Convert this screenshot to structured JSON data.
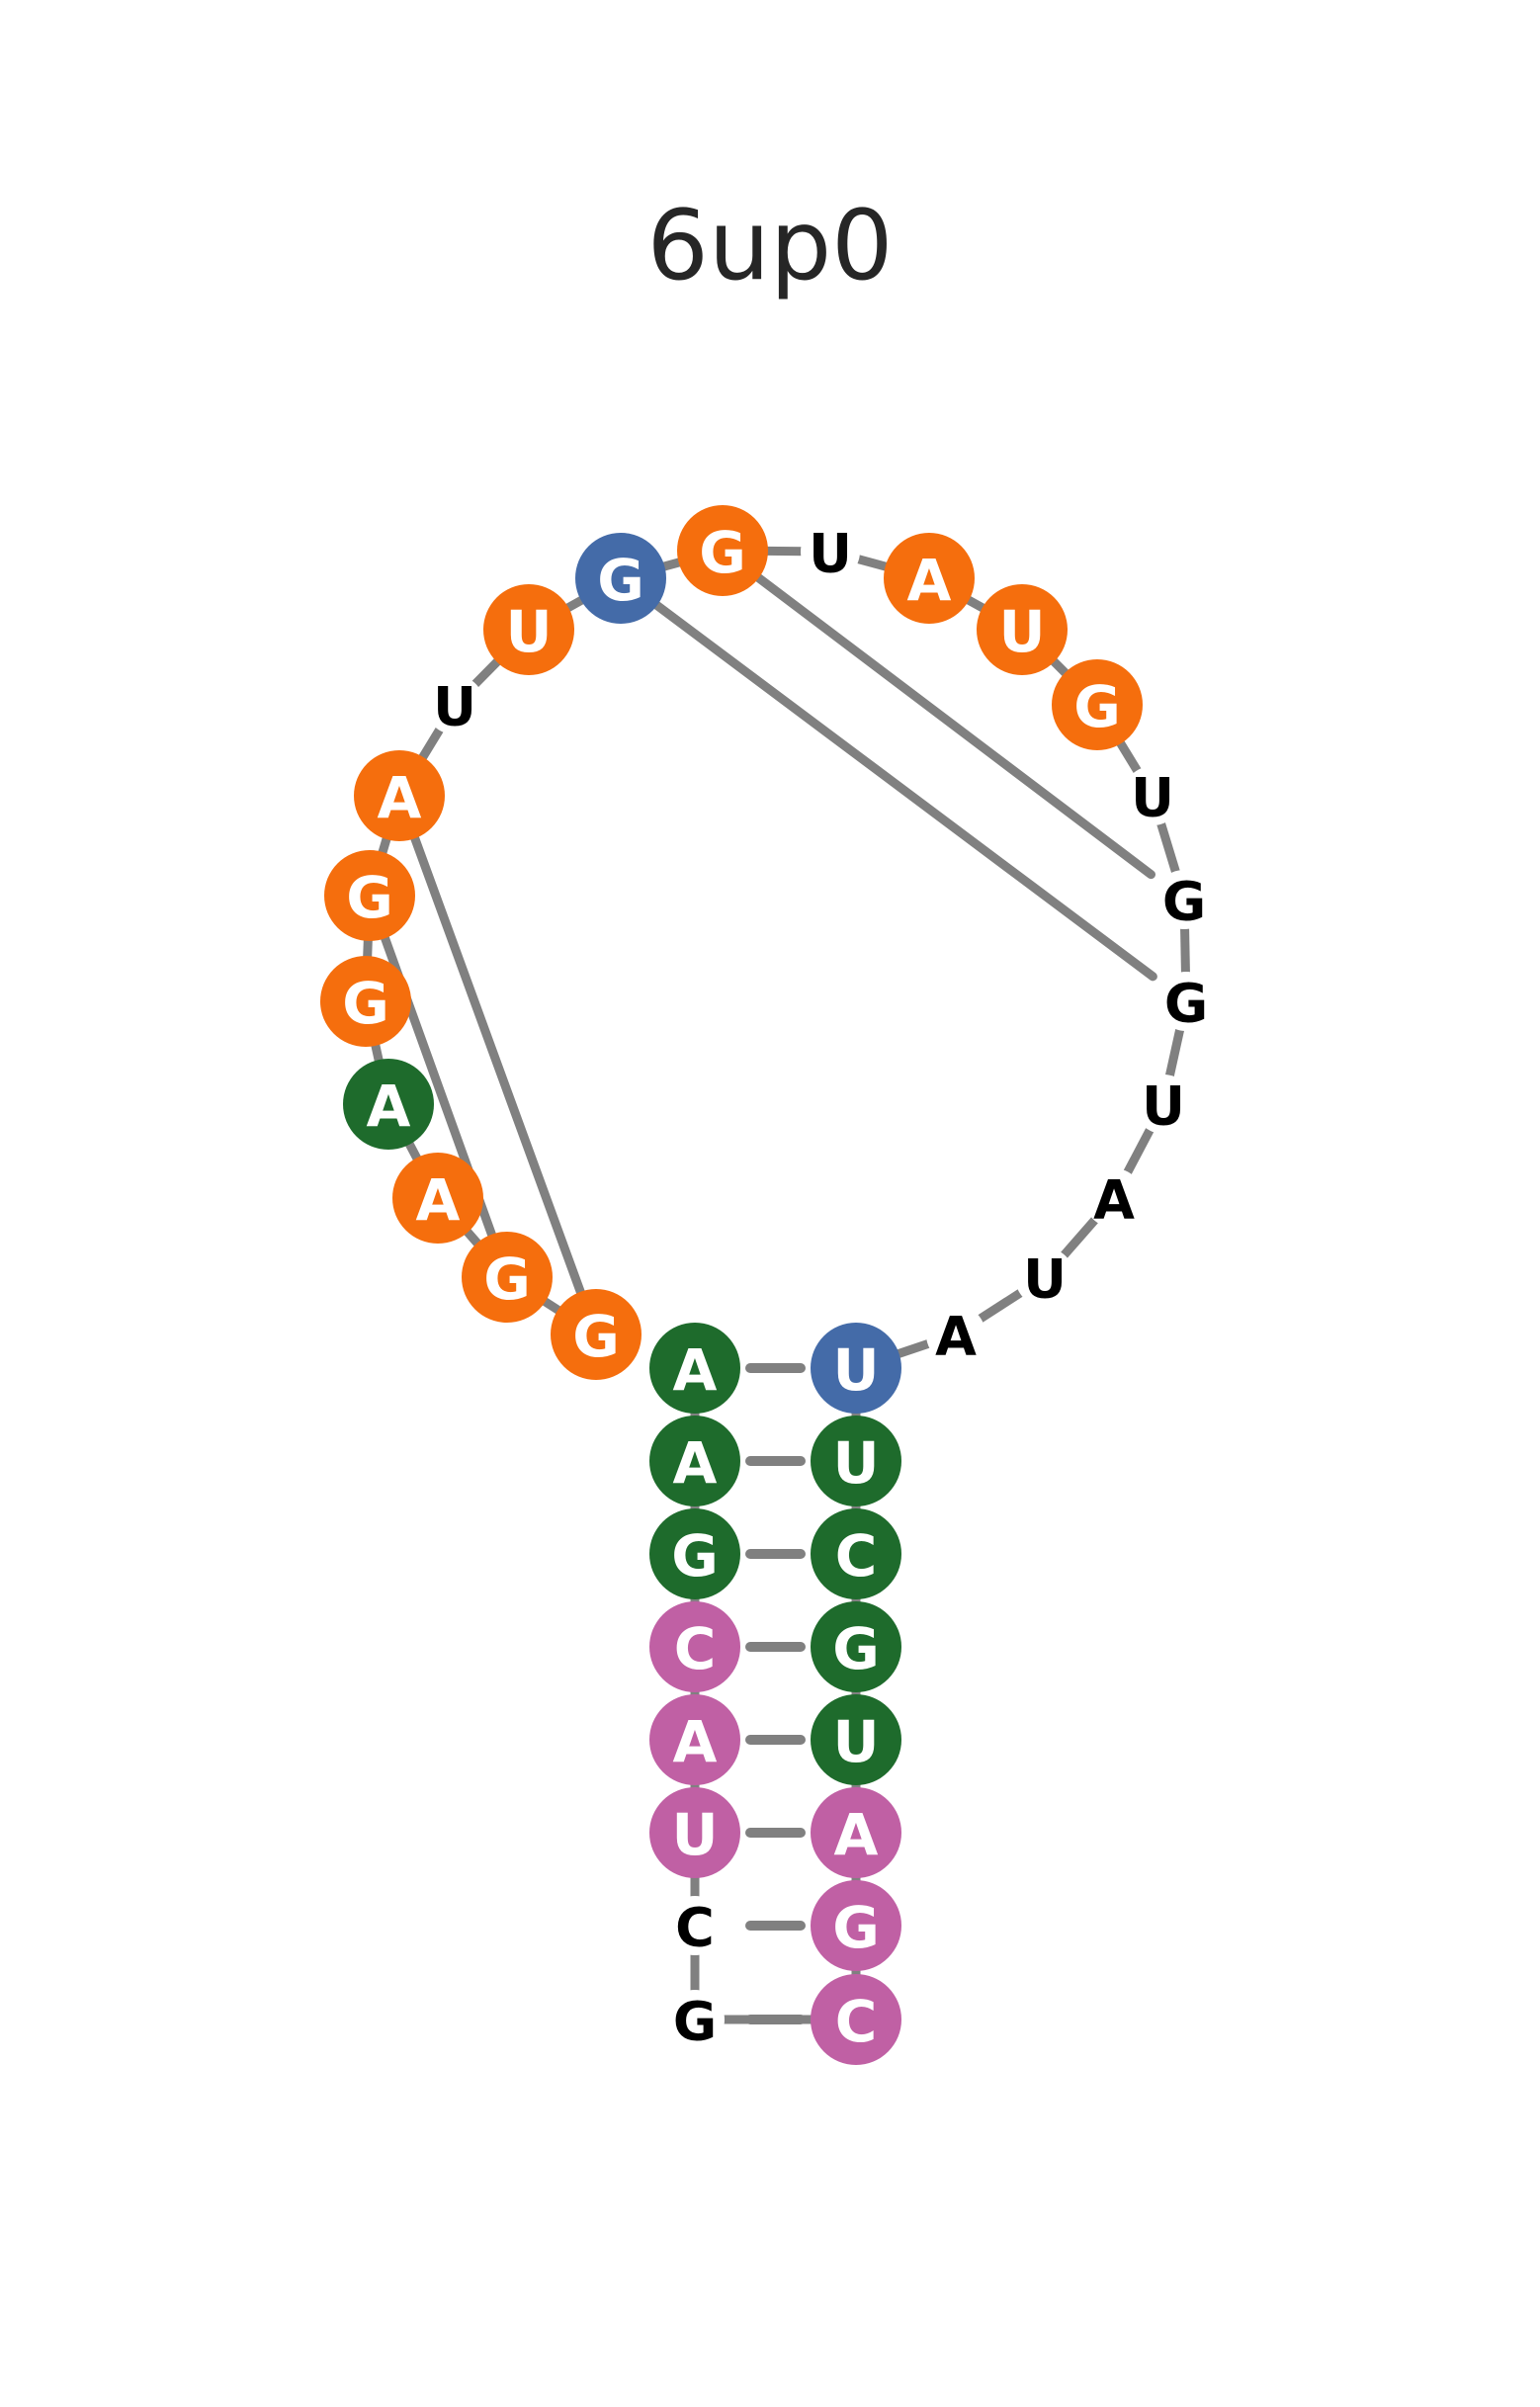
{
  "title": "6up0",
  "colors": {
    "orange": "#f56e0d",
    "blue": "#446ba8",
    "green": "#1e6b2c",
    "pink": "#c060a4",
    "backbone": "#808080",
    "label_on_circle": "#ffffff",
    "label_plain": "#000000"
  },
  "nucleotides": [
    {
      "base": "A",
      "color": "green"
    },
    {
      "base": "A",
      "color": "green"
    },
    {
      "base": "G",
      "color": "green"
    },
    {
      "base": "C",
      "color": "pink"
    },
    {
      "base": "A",
      "color": "pink"
    },
    {
      "base": "U",
      "color": "pink"
    },
    {
      "base": "C",
      "color": "none"
    },
    {
      "base": "G",
      "color": "none"
    },
    {
      "base": "C",
      "color": "pink"
    },
    {
      "base": "G",
      "color": "pink"
    },
    {
      "base": "A",
      "color": "pink"
    },
    {
      "base": "U",
      "color": "green"
    },
    {
      "base": "G",
      "color": "green"
    },
    {
      "base": "C",
      "color": "green"
    },
    {
      "base": "U",
      "color": "green"
    },
    {
      "base": "U",
      "color": "blue"
    },
    {
      "base": "A",
      "color": "none"
    },
    {
      "base": "U",
      "color": "none"
    },
    {
      "base": "A",
      "color": "none"
    },
    {
      "base": "U",
      "color": "none"
    },
    {
      "base": "G",
      "color": "none"
    },
    {
      "base": "G",
      "color": "none"
    },
    {
      "base": "U",
      "color": "none"
    },
    {
      "base": "G",
      "color": "orange"
    },
    {
      "base": "U",
      "color": "orange"
    },
    {
      "base": "A",
      "color": "orange"
    },
    {
      "base": "U",
      "color": "none"
    },
    {
      "base": "G",
      "color": "orange"
    },
    {
      "base": "G",
      "color": "blue"
    },
    {
      "base": "U",
      "color": "orange"
    },
    {
      "base": "U",
      "color": "none"
    },
    {
      "base": "A",
      "color": "orange"
    },
    {
      "base": "G",
      "color": "orange"
    },
    {
      "base": "G",
      "color": "orange"
    },
    {
      "base": "A",
      "color": "green"
    },
    {
      "base": "A",
      "color": "orange"
    },
    {
      "base": "G",
      "color": "orange"
    },
    {
      "base": "G",
      "color": "orange"
    }
  ],
  "stem_pairs": [
    [
      1,
      16
    ],
    [
      2,
      15
    ],
    [
      3,
      14
    ],
    [
      4,
      13
    ],
    [
      5,
      12
    ],
    [
      6,
      11
    ],
    [
      7,
      10
    ],
    [
      8,
      9
    ]
  ],
  "long_range_links": [
    [
      29,
      21
    ],
    [
      28,
      22
    ],
    [
      33,
      37
    ],
    [
      32,
      38
    ]
  ]
}
